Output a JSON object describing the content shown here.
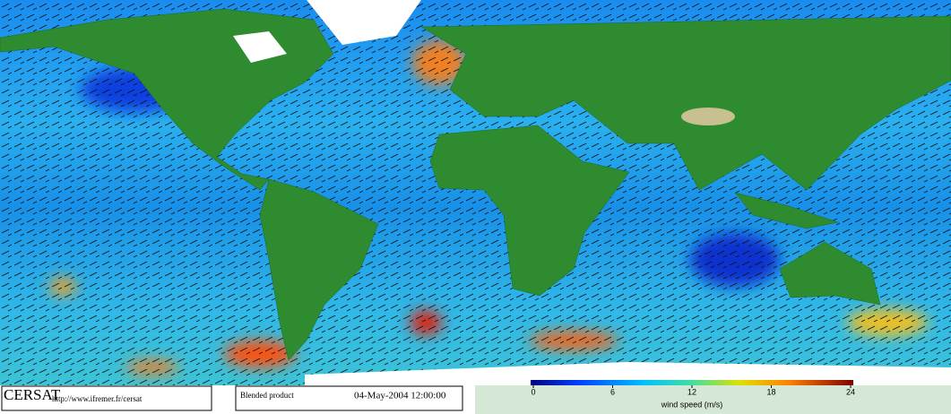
{
  "footer": {
    "logo": "CERSAT",
    "url": "http://www.ifremer.fr/cersat",
    "product": "Blended product",
    "date": "04-May-2004 12:00:00"
  },
  "colorbar": {
    "label": "wind speed (m/s)",
    "lim": [
      0,
      24
    ],
    "ticks": [
      0,
      6,
      12,
      18,
      24
    ]
  }
}
